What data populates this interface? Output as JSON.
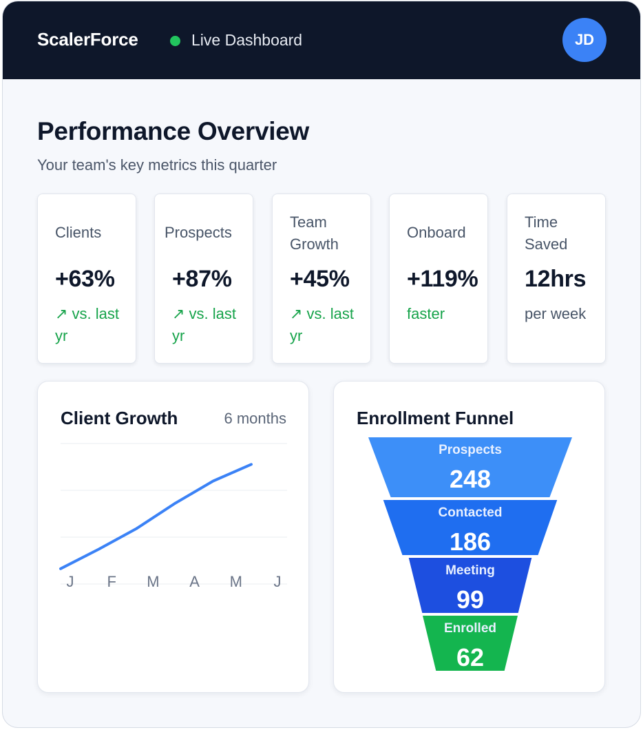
{
  "header": {
    "brand": "ScalerForce",
    "status_text": "Live Dashboard",
    "avatar_initials": "JD",
    "colors": {
      "background": "#0e172a",
      "status_dot": "#22c55e",
      "avatar": "#3b82f6"
    }
  },
  "overview": {
    "title": "Performance Overview",
    "subtitle": "Your team's key metrics this quarter"
  },
  "metrics": [
    {
      "label": "Clients",
      "value": "+63%",
      "note": "↗ vs. last yr",
      "note_color": "#16a34a"
    },
    {
      "label": "Prospects",
      "value": "+87%",
      "note": "↗ vs. last yr",
      "note_color": "#16a34a"
    },
    {
      "label": "Team Growth",
      "value": "+45%",
      "note": "↗ vs. last yr",
      "note_color": "#16a34a"
    },
    {
      "label": "Onboard",
      "value": "+119%",
      "note": "faster",
      "note_color": "#16a34a"
    },
    {
      "label": "Time Saved",
      "value": "12hrs",
      "note": "per week",
      "note_color": "#475467"
    }
  ],
  "client_growth": {
    "title": "Client Growth",
    "period": "6 months"
  },
  "funnel": {
    "title": "Enrollment Funnel"
  },
  "chart_data": [
    {
      "type": "line",
      "title": "Client Growth",
      "subtitle": "6 months",
      "categories": [
        "J",
        "F",
        "M",
        "A",
        "M",
        "J"
      ],
      "values": [
        10,
        24,
        39,
        57,
        73,
        85
      ],
      "ylim": [
        0,
        100
      ],
      "grid": true,
      "legend": "none",
      "line_color": "#3b82f6"
    },
    {
      "type": "bar",
      "title": "Enrollment Funnel",
      "categories": [
        "Prospects",
        "Contacted",
        "Meeting",
        "Enrolled"
      ],
      "values": [
        248,
        186,
        99,
        62
      ],
      "colors": [
        "#3d8ff8",
        "#1f6ef0",
        "#1d4fe0",
        "#14b54f"
      ]
    }
  ]
}
